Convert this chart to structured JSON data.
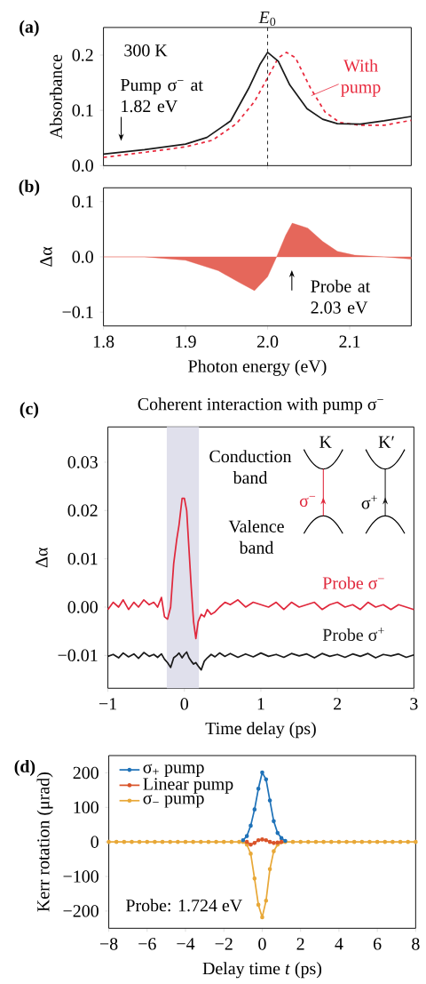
{
  "chart_data": [
    {
      "type": "line",
      "ylabel": "Absorbance",
      "xlim": [
        1.8,
        2.175
      ],
      "ylim": [
        0,
        0.25
      ],
      "xticks": [
        1.8,
        1.9,
        2.0,
        2.1
      ],
      "yticks": [
        {
          "value": 0,
          "label": "0.0"
        },
        0.1,
        0.2
      ],
      "tick_labels": "y",
      "series": [
        {
          "color": "#1a1a1a",
          "line_style": "solid",
          "x": [
            1.8,
            1.85,
            1.9,
            1.926,
            1.955,
            1.977,
            1.991,
            2.0,
            2.013,
            2.027,
            2.048,
            2.067,
            2.085,
            2.113,
            2.142,
            2.175
          ],
          "values": [
            0.021,
            0.029,
            0.039,
            0.051,
            0.081,
            0.14,
            0.184,
            0.205,
            0.189,
            0.146,
            0.103,
            0.084,
            0.076,
            0.075,
            0.081,
            0.089
          ]
        },
        {
          "name": "With pump",
          "color": "#e8283c",
          "line_style": "dashed",
          "x": [
            1.8,
            1.85,
            1.9,
            1.933,
            1.962,
            1.984,
            2.0,
            2.013,
            2.023,
            2.034,
            2.052,
            2.07,
            2.088,
            2.113,
            2.142,
            2.175
          ],
          "values": [
            0.015,
            0.024,
            0.034,
            0.046,
            0.076,
            0.116,
            0.159,
            0.195,
            0.205,
            0.195,
            0.141,
            0.097,
            0.078,
            0.073,
            0.073,
            0.082
          ]
        }
      ],
      "ref_lines": [
        {
          "axis": "x",
          "value": 2.0,
          "label": "*E*$_{0}$",
          "line_style": "dashed",
          "color": "#1a1a1a"
        }
      ],
      "annotations": [
        "(a)",
        "300 K",
        "Pump σ$^{−}$ at 1.82 eV"
      ]
    },
    {
      "type": "area",
      "xlabel": "Photon energy (eV)",
      "ylabel": "Δα",
      "xlim": [
        1.8,
        2.175
      ],
      "ylim": [
        -0.125,
        0.125
      ],
      "xticks": [
        1.8,
        1.9,
        {
          "value": 2.0,
          "label": "2.0"
        },
        2.1
      ],
      "yticks": [
        {
          "value": -0.1,
          "label": "−0.1"
        },
        {
          "value": 0,
          "label": "0.0"
        },
        0.1
      ],
      "series": [
        {
          "color": "#e5675b",
          "x": [
            1.8,
            1.85,
            1.9,
            1.94,
            1.965,
            1.984,
            2.0,
            2.011,
            2.022,
            2.03,
            2.049,
            2.067,
            2.085,
            2.106,
            2.142,
            2.175
          ],
          "values": [
            0,
            0,
            -0.006,
            -0.025,
            -0.046,
            -0.061,
            -0.036,
            0,
            0.039,
            0.061,
            0.052,
            0.028,
            0.01,
            0.003,
            0,
            -0.004
          ]
        }
      ],
      "annotations": [
        "(b)",
        "Probe at 2.03 eV"
      ]
    },
    {
      "type": "line",
      "title": "Coherent interaction with pump σ$^{−}$",
      "xlabel": "Time delay (ps)",
      "ylabel": "Δα",
      "xlim": [
        -1,
        3
      ],
      "ylim": [
        -0.0168,
        0.0373
      ],
      "xticks": [
        {
          "value": -1,
          "label": "−1"
        },
        0,
        1,
        2,
        3
      ],
      "yticks": [
        {
          "value": -0.01,
          "label": "−0.01"
        },
        {
          "value": 0,
          "label": "0.00"
        },
        0.01,
        0.02,
        0.03
      ],
      "x": [
        -1,
        -0.93,
        -0.86,
        -0.8,
        -0.73,
        -0.66,
        -0.6,
        -0.53,
        -0.46,
        -0.4,
        -0.35,
        -0.3,
        -0.26,
        -0.22,
        -0.18,
        -0.14,
        -0.1,
        -0.07,
        -0.03,
        0,
        0.03,
        0.06,
        0.09,
        0.12,
        0.15,
        0.18,
        0.22,
        0.26,
        0.3,
        0.35,
        0.4,
        0.46,
        0.53,
        0.6,
        0.7,
        0.8,
        0.9,
        1.0,
        1.1,
        1.2,
        1.3,
        1.4,
        1.5,
        1.6,
        1.7,
        1.8,
        1.9,
        2.0,
        2.1,
        2.2,
        2.3,
        2.4,
        2.5,
        2.6,
        2.7,
        2.8,
        2.9,
        3.0
      ],
      "series": [
        {
          "name": "Probe σ$^{−}$",
          "color": "#e0283c",
          "values": [
            -0.0005,
            0.001,
            0.0,
            0.0015,
            -0.0005,
            0.001,
            0.0,
            0.0015,
            0.0005,
            0.001,
            0.0,
            0.002,
            -0.002,
            -0.0025,
            0.0,
            0.009,
            0.014,
            0.017,
            0.0225,
            0.0225,
            0.02,
            0.012,
            0.004,
            -0.003,
            -0.0065,
            -0.003,
            -0.0015,
            -0.002,
            -0.0005,
            -0.0015,
            -0.001,
            0.0,
            0.001,
            0.0005,
            0.0015,
            0.0,
            0.001,
            0.0005,
            0.0,
            0.001,
            -0.0005,
            0.001,
            0.0,
            0.0005,
            0.001,
            -0.0005,
            0.0005,
            0.001,
            0.0,
            0.0005,
            -0.0005,
            0.001,
            0.0,
            0.0005,
            -0.0005,
            0.0005,
            0.0,
            -0.0005
          ]
        },
        {
          "name": "Probe σ$^{+}$",
          "color": "#1a1a1a",
          "values": [
            -0.0102,
            -0.0098,
            -0.0105,
            -0.0095,
            -0.0103,
            -0.0097,
            -0.0106,
            -0.0094,
            -0.0102,
            -0.0098,
            -0.0104,
            -0.0097,
            -0.0108,
            -0.0115,
            -0.0125,
            -0.0105,
            -0.01,
            -0.0095,
            -0.0105,
            -0.0098,
            -0.0093,
            -0.0105,
            -0.0112,
            -0.0118,
            -0.0115,
            -0.0122,
            -0.013,
            -0.0112,
            -0.0105,
            -0.0098,
            -0.0103,
            -0.0095,
            -0.0102,
            -0.0096,
            -0.0104,
            -0.0097,
            -0.0103,
            -0.0095,
            -0.0102,
            -0.0098,
            -0.0104,
            -0.0096,
            -0.0101,
            -0.0097,
            -0.0105,
            -0.0096,
            -0.0102,
            -0.0098,
            -0.0104,
            -0.0097,
            -0.0102,
            -0.0096,
            -0.0105,
            -0.0098,
            -0.0101,
            -0.0097,
            -0.0104,
            -0.0099
          ]
        }
      ],
      "bands": [
        {
          "axis": "x",
          "from": -0.23,
          "to": 0.19,
          "color": "#e0e0ec"
        }
      ],
      "annotations": [
        "(c)",
        "Conduction band",
        "Valence band",
        "K",
        "K′",
        "σ$^{−}$",
        "σ$^{+}$"
      ]
    },
    {
      "type": "line",
      "xlabel": "Delay time *t* (ps)",
      "ylabel": "Kerr rotation (μrad)",
      "xlim": [
        -8,
        8
      ],
      "ylim": [
        -250,
        250
      ],
      "xticks": [
        {
          "value": -8,
          "label": "−8"
        },
        {
          "value": -6,
          "label": "−6"
        },
        {
          "value": -4,
          "label": "−4"
        },
        {
          "value": -2,
          "label": "−2"
        },
        0,
        2,
        4,
        6,
        8
      ],
      "yticks": [
        {
          "value": -200,
          "label": "−200"
        },
        {
          "value": -100,
          "label": "−100"
        },
        0,
        100,
        200
      ],
      "marker": "circle",
      "legend": "top left",
      "x": [
        -8,
        -7.6,
        -7.2,
        -6.8,
        -6.4,
        -6,
        -5.6,
        -5.2,
        -4.8,
        -4.4,
        -4,
        -3.6,
        -3.2,
        -2.8,
        -2.4,
        -2,
        -1.6,
        -1.2,
        -1,
        -0.8,
        -0.6,
        -0.4,
        -0.2,
        0,
        0.2,
        0.4,
        0.6,
        0.8,
        1,
        1.2,
        1.6,
        2,
        2.4,
        2.8,
        3.2,
        3.6,
        4,
        4.4,
        4.8,
        5.2,
        5.6,
        6,
        6.4,
        6.8,
        7.2,
        7.6,
        8
      ],
      "series": [
        {
          "name": "σ$_{+}$ pump",
          "color": "#1f72b8",
          "values": [
            null,
            null,
            null,
            null,
            null,
            null,
            null,
            null,
            null,
            null,
            null,
            null,
            null,
            null,
            null,
            null,
            null,
            null,
            5,
            17,
            47,
            94,
            154,
            201,
            181,
            120,
            60,
            26,
            11,
            3,
            null,
            null,
            null,
            null,
            null,
            null,
            null,
            null,
            null,
            null,
            null,
            null,
            null,
            null,
            null,
            null,
            null
          ]
        },
        {
          "name": "Linear pump",
          "color": "#d9542a",
          "values": [
            null,
            null,
            null,
            null,
            null,
            null,
            null,
            null,
            null,
            null,
            null,
            null,
            null,
            null,
            null,
            null,
            null,
            null,
            null,
            0,
            -8,
            -3,
            5,
            7,
            5,
            0,
            -3,
            -2,
            0,
            null,
            null,
            null,
            null,
            null,
            null,
            null,
            null,
            null,
            null,
            null,
            null,
            null,
            null,
            null,
            null,
            null,
            null
          ]
        },
        {
          "name": "σ$_{−}$ pump",
          "color": "#e8a838",
          "values": [
            0,
            0,
            0,
            0,
            0,
            0,
            0,
            0,
            0,
            0,
            0,
            0,
            0,
            0,
            0,
            0,
            0,
            0,
            0,
            -8,
            -34,
            -106,
            -182,
            -218,
            -170,
            -79,
            -27,
            -8,
            null,
            0,
            0,
            0,
            0,
            0,
            0,
            0,
            0,
            0,
            0,
            0,
            0,
            0,
            0,
            0,
            0,
            0,
            0
          ]
        }
      ],
      "annotations": [
        "(d)",
        "Probe: 1.724 eV"
      ]
    }
  ]
}
